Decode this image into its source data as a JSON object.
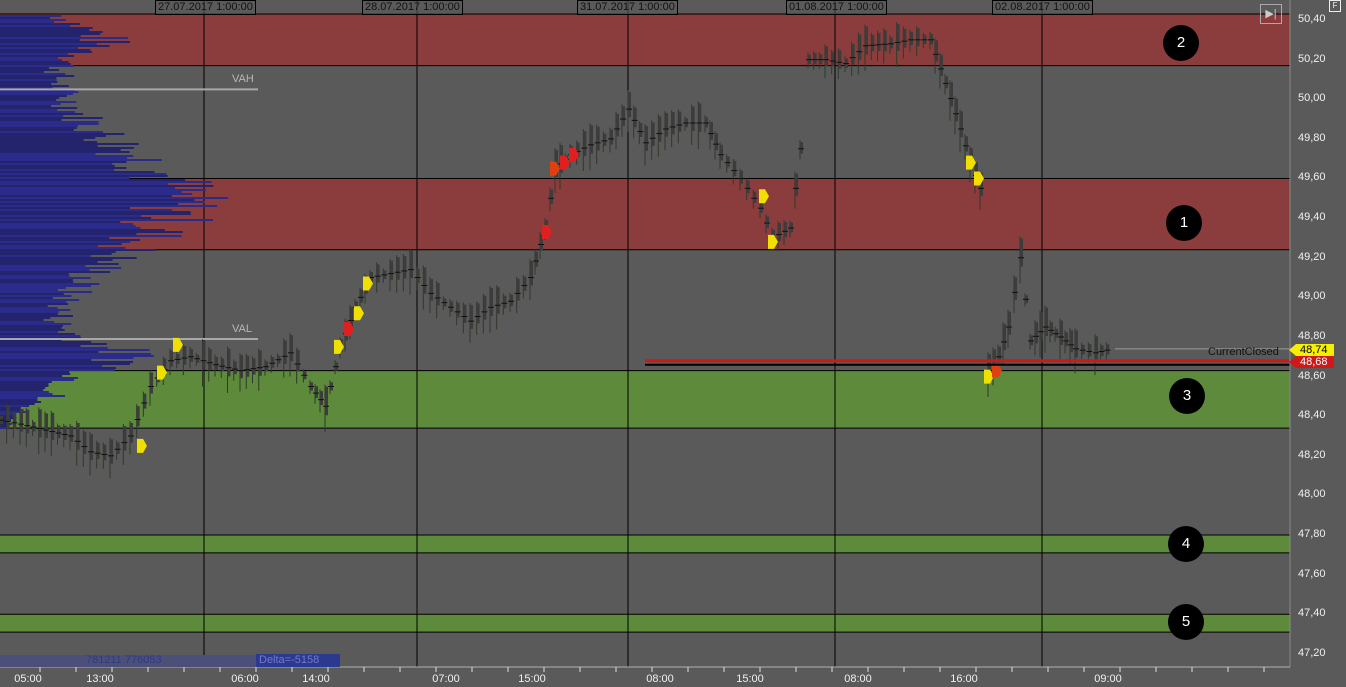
{
  "chart_data": {
    "type": "candlestick-footprint",
    "price_axis": {
      "ticks": [
        "50,40",
        "50,20",
        "50,00",
        "49,80",
        "49,60",
        "49,40",
        "49,20",
        "49,00",
        "48,80",
        "48,60",
        "48,40",
        "48,20",
        "48,00",
        "47,80",
        "47,60",
        "47,40",
        "47,20"
      ],
      "range": [
        47.15,
        50.45
      ]
    },
    "time_axis": {
      "ticks": [
        "05:00",
        "13:00",
        "06:00",
        "14:00",
        "07:00",
        "15:00",
        "08:00",
        "15:00",
        "08:00",
        "16:00",
        "09:00"
      ]
    },
    "sessions": [
      "27.07.2017 1:00:00",
      "28.07.2017 1:00:00",
      "31.07.2017 1:00:00",
      "01.08.2017 1:00:00",
      "02.08.2017 1:00:00"
    ],
    "price_path": [
      [
        0,
        48.38
      ],
      [
        20,
        48.36
      ],
      [
        45,
        48.33
      ],
      [
        70,
        48.3
      ],
      [
        90,
        48.22
      ],
      [
        110,
        48.2
      ],
      [
        130,
        48.3
      ],
      [
        150,
        48.55
      ],
      [
        170,
        48.68
      ],
      [
        190,
        48.7
      ],
      [
        215,
        48.66
      ],
      [
        240,
        48.63
      ],
      [
        265,
        48.65
      ],
      [
        290,
        48.72
      ],
      [
        310,
        48.55
      ],
      [
        325,
        48.45
      ],
      [
        340,
        48.75
      ],
      [
        355,
        48.95
      ],
      [
        370,
        49.1
      ],
      [
        390,
        49.12
      ],
      [
        410,
        49.14
      ],
      [
        430,
        49.02
      ],
      [
        450,
        48.95
      ],
      [
        470,
        48.88
      ],
      [
        490,
        48.95
      ],
      [
        510,
        48.98
      ],
      [
        530,
        49.1
      ],
      [
        545,
        49.35
      ],
      [
        555,
        49.65
      ],
      [
        570,
        49.72
      ],
      [
        590,
        49.77
      ],
      [
        610,
        49.8
      ],
      [
        628,
        49.95
      ],
      [
        645,
        49.78
      ],
      [
        665,
        49.85
      ],
      [
        685,
        49.88
      ],
      [
        705,
        49.88
      ],
      [
        720,
        49.72
      ],
      [
        740,
        49.6
      ],
      [
        760,
        49.45
      ],
      [
        772,
        49.3
      ],
      [
        790,
        49.35
      ],
      [
        800,
        49.75
      ],
      [
        808,
        50.2
      ],
      [
        825,
        50.2
      ],
      [
        845,
        50.18
      ],
      [
        865,
        50.27
      ],
      [
        890,
        50.28
      ],
      [
        910,
        50.3
      ],
      [
        930,
        50.3
      ],
      [
        945,
        50.08
      ],
      [
        960,
        49.85
      ],
      [
        970,
        49.68
      ],
      [
        980,
        49.55
      ],
      [
        988,
        48.62
      ],
      [
        998,
        48.7
      ],
      [
        1008,
        48.85
      ],
      [
        1020,
        49.2
      ],
      [
        1030,
        48.78
      ],
      [
        1045,
        48.85
      ],
      [
        1060,
        48.8
      ],
      [
        1075,
        48.74
      ],
      [
        1095,
        48.72
      ],
      [
        1112,
        48.74
      ]
    ],
    "signals": [
      {
        "price": 48.62,
        "t": 160,
        "color": "#f0e000"
      },
      {
        "price": 48.76,
        "t": 176,
        "color": "#f0e000"
      },
      {
        "price": 48.25,
        "t": 140,
        "color": "#f0e000"
      },
      {
        "price": 48.75,
        "t": 337,
        "color": "#f0e000"
      },
      {
        "price": 48.84,
        "t": 347,
        "color": "#e02020"
      },
      {
        "price": 48.92,
        "t": 357,
        "color": "#f0e000"
      },
      {
        "price": 49.07,
        "t": 366,
        "color": "#f0e000"
      },
      {
        "price": 49.33,
        "t": 545,
        "color": "#e02020"
      },
      {
        "price": 49.65,
        "t": 553,
        "color": "#e04010"
      },
      {
        "price": 49.68,
        "t": 563,
        "color": "#e02020"
      },
      {
        "price": 49.72,
        "t": 572,
        "color": "#e02020"
      },
      {
        "price": 49.51,
        "t": 762,
        "color": "#f0e000"
      },
      {
        "price": 49.28,
        "t": 771,
        "color": "#f0e000"
      },
      {
        "price": 49.68,
        "t": 969,
        "color": "#f0e000"
      },
      {
        "price": 49.6,
        "t": 977,
        "color": "#f0e000"
      },
      {
        "price": 48.6,
        "t": 987,
        "color": "#f0e000"
      },
      {
        "price": 48.63,
        "t": 995,
        "color": "#e04010"
      }
    ],
    "zones": [
      {
        "label": "2",
        "from": 50.17,
        "to": 50.43,
        "color": "#8b3c3c"
      },
      {
        "label": "1",
        "from": 49.24,
        "to": 49.6,
        "color": "#8b3c3c"
      },
      {
        "label": "3",
        "from": 48.34,
        "to": 48.63,
        "color": "#5e8a3c"
      },
      {
        "label": "4",
        "from": 47.71,
        "to": 47.8,
        "color": "#5e8a3c"
      },
      {
        "label": "5",
        "from": 47.31,
        "to": 47.4,
        "color": "#5e8a3c"
      }
    ],
    "value_area": {
      "vah_label": "VAH",
      "vah": 50.05,
      "val_label": "VAL",
      "val": 48.79
    },
    "current_price": {
      "label": "48,74",
      "value": 48.74,
      "color": "#f5ef00"
    },
    "order_price": {
      "label": "48,68",
      "value": 48.68,
      "color": "#d01818"
    },
    "order_text": "CurrentClosed"
  },
  "footer": {
    "volume": "781211 776053",
    "delta": "Delta=-5158"
  },
  "controls": {
    "nav_icon": "skip-to-end-icon",
    "f_label": "F"
  },
  "colors": {
    "background": "#5a5a5a",
    "profile": "#2b2b8c",
    "grid": "#000000"
  }
}
